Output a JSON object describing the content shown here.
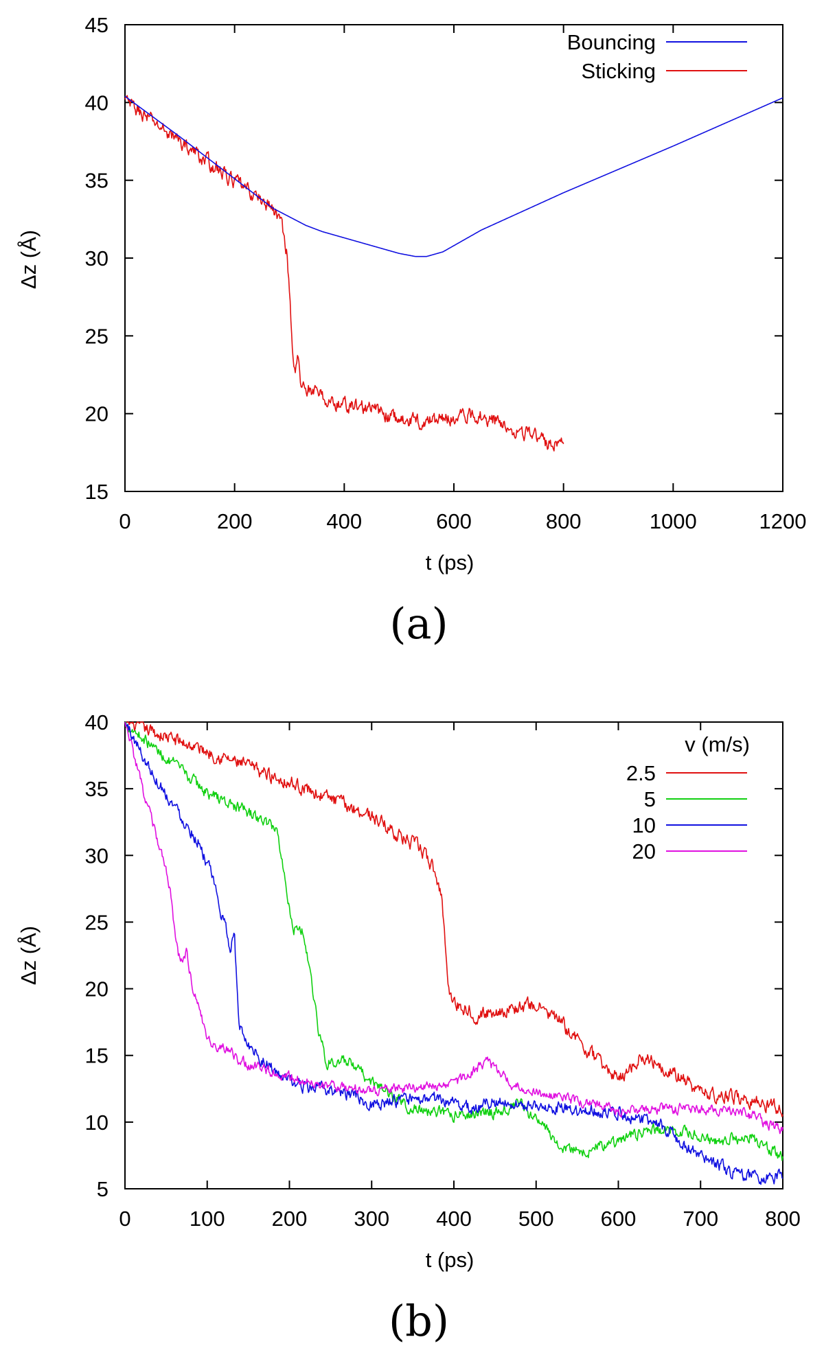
{
  "chart_data": [
    {
      "panel_label": "(a)",
      "type": "line",
      "xlabel": "t (ps)",
      "ylabel": "Δz (Å)",
      "xlim": [
        0,
        1200
      ],
      "ylim": [
        15,
        45
      ],
      "xticks": [
        0,
        200,
        400,
        600,
        800,
        1000,
        1200
      ],
      "yticks": [
        15,
        20,
        25,
        30,
        35,
        40,
        45
      ],
      "legend_position": "top-right",
      "series": [
        {
          "name": "Bouncing",
          "color": "#1010e0",
          "noise": 0,
          "x": [
            0,
            100,
            200,
            270,
            330,
            360,
            400,
            450,
            500,
            530,
            550,
            580,
            650,
            800,
            1000,
            1200
          ],
          "y": [
            40.4,
            37.8,
            35.1,
            33.2,
            32.1,
            31.7,
            31.3,
            30.8,
            30.3,
            30.1,
            30.1,
            30.4,
            31.8,
            34.2,
            37.2,
            40.3
          ]
        },
        {
          "name": "Sticking",
          "color": "#e01010",
          "noise": 0.55,
          "x": [
            0,
            100,
            200,
            270,
            285,
            295,
            300,
            305,
            310,
            315,
            320,
            330,
            350,
            380,
            420,
            450,
            500,
            550,
            600,
            650,
            700,
            750,
            780,
            800
          ],
          "y": [
            40.1,
            37.5,
            34.9,
            33.2,
            32.3,
            30.5,
            28.0,
            24.5,
            22.5,
            23.8,
            22.0,
            21.7,
            21.3,
            20.6,
            20.5,
            20.3,
            19.6,
            19.5,
            19.8,
            19.9,
            19.2,
            18.5,
            17.9,
            18.4
          ]
        }
      ]
    },
    {
      "panel_label": "(b)",
      "type": "line",
      "xlabel": "t (ps)",
      "ylabel": "Δz (Å)",
      "xlim": [
        0,
        800
      ],
      "ylim": [
        5,
        40
      ],
      "xticks": [
        0,
        100,
        200,
        300,
        400,
        500,
        600,
        700,
        800
      ],
      "yticks": [
        5,
        10,
        15,
        20,
        25,
        30,
        35,
        40
      ],
      "legend_position": "top-right",
      "legend_title": "v (m/s)",
      "series": [
        {
          "name": "2.5",
          "color": "#e01010",
          "noise": 0.6,
          "x": [
            0,
            100,
            200,
            300,
            340,
            360,
            375,
            385,
            390,
            395,
            400,
            430,
            450,
            480,
            500,
            530,
            560,
            600,
            630,
            660,
            700,
            750,
            800
          ],
          "y": [
            40,
            37.8,
            35.5,
            33.0,
            31.2,
            30.5,
            29.0,
            27.0,
            23.0,
            19.5,
            19.0,
            18.0,
            18.3,
            18.6,
            18.8,
            17.5,
            15.5,
            13.2,
            15.0,
            14.0,
            12.2,
            11.8,
            11.0
          ]
        },
        {
          "name": "5",
          "color": "#10d010",
          "noise": 0.5,
          "x": [
            0,
            50,
            100,
            150,
            185,
            195,
            205,
            215,
            225,
            235,
            245,
            270,
            300,
            350,
            400,
            450,
            480,
            500,
            530,
            560,
            600,
            640,
            680,
            720,
            760,
            800
          ],
          "y": [
            40,
            37.3,
            34.7,
            33.2,
            32.0,
            28.0,
            24.5,
            24.5,
            21.5,
            17.0,
            14.5,
            14.5,
            13.0,
            11.0,
            10.5,
            10.8,
            11.3,
            10.2,
            8.2,
            7.8,
            8.6,
            9.5,
            9.2,
            8.5,
            9.0,
            7.2
          ]
        },
        {
          "name": "10",
          "color": "#1010e0",
          "noise": 0.55,
          "x": [
            0,
            30,
            60,
            90,
            105,
            120,
            128,
            133,
            138,
            145,
            160,
            190,
            220,
            260,
            300,
            340,
            380,
            420,
            450,
            500,
            550,
            600,
            650,
            700,
            750,
            800
          ],
          "y": [
            40,
            36.5,
            33.7,
            31.0,
            28.5,
            25.0,
            23.2,
            24.3,
            17.5,
            16.3,
            15.2,
            13.3,
            12.6,
            12.3,
            11.4,
            11.6,
            11.7,
            11.1,
            11.5,
            11.2,
            10.9,
            10.8,
            9.8,
            7.3,
            6.0,
            5.8
          ]
        },
        {
          "name": "20",
          "color": "#e010e0",
          "noise": 0.45,
          "x": [
            0,
            20,
            40,
            55,
            62,
            68,
            75,
            82,
            90,
            100,
            120,
            150,
            200,
            250,
            300,
            350,
            400,
            440,
            470,
            500,
            550,
            600,
            650,
            700,
            750,
            800
          ],
          "y": [
            40,
            35.3,
            31.0,
            27.5,
            23.5,
            21.8,
            22.8,
            20.0,
            18.8,
            16.0,
            15.5,
            14.3,
            13.4,
            12.7,
            12.4,
            12.6,
            12.8,
            14.5,
            12.8,
            12.2,
            11.6,
            10.9,
            11.0,
            11.0,
            10.8,
            9.3
          ]
        }
      ]
    }
  ]
}
